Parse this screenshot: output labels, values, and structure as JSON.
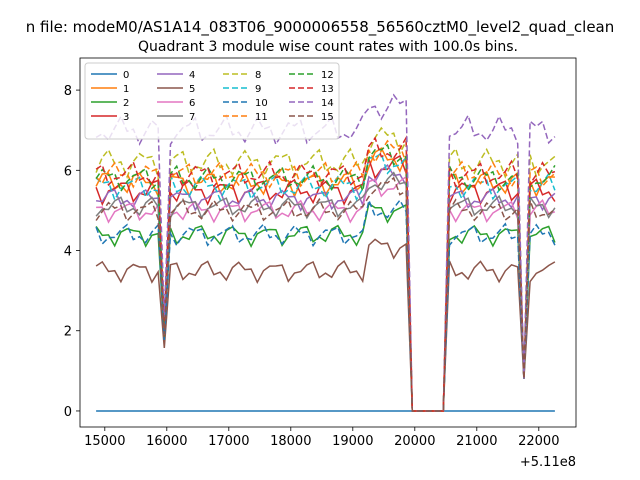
{
  "chart_data": {
    "type": "line",
    "suptitle": "n file: modeM0/AS1A14_083T06_9000006558_56560cztM0_level2_quad_clean",
    "title": "Quadrant 3 module wise count rates with 100.0s bins.",
    "xlabel": "",
    "ylabel": "",
    "x_offset_label": "+5.11e8",
    "xlim": [
      14600,
      22600
    ],
    "ylim": [
      -0.4,
      8.8
    ],
    "x_ticks": [
      15000,
      16000,
      17000,
      18000,
      19000,
      20000,
      21000,
      22000
    ],
    "x_tick_labels": [
      "15000",
      "16000",
      "17000",
      "18000",
      "19000",
      "20000",
      "21000",
      "22000"
    ],
    "y_ticks": [
      0,
      2,
      4,
      6,
      8
    ],
    "y_tick_labels": [
      "0",
      "2",
      "4",
      "6",
      "8"
    ],
    "grid": false,
    "legend_position": "top-left",
    "legend_columns": 4,
    "segments": [
      {
        "start": 14860,
        "end": 19860,
        "step": 100
      },
      {
        "start": 20560,
        "end": 21660,
        "step": 100
      },
      {
        "start": 21760,
        "end": 22260,
        "step": 100
      }
    ],
    "gap_x": [
      19960,
      20060,
      20160,
      20260,
      20360,
      20460
    ],
    "dip_points": [
      {
        "x": 15960,
        "f": 0.22
      },
      {
        "x": 21760,
        "f": 0.0
      }
    ],
    "series": [
      {
        "name": "0",
        "color": "#1f77b4",
        "dash": "solid",
        "base": 0.0,
        "amp": 0.0
      },
      {
        "name": "1",
        "color": "#ff7f0e",
        "dash": "solid",
        "base": 5.7,
        "amp": 0.35
      },
      {
        "name": "2",
        "color": "#2ca02c",
        "dash": "solid",
        "base": 4.4,
        "amp": 0.3
      },
      {
        "name": "3",
        "color": "#d62728",
        "dash": "solid",
        "base": 5.5,
        "amp": 0.35
      },
      {
        "name": "4",
        "color": "#9467bd",
        "dash": "solid",
        "base": 5.3,
        "amp": 0.3
      },
      {
        "name": "5",
        "color": "#8c564b",
        "dash": "solid",
        "base": 3.5,
        "amp": 0.3
      },
      {
        "name": "6",
        "color": "#e377c2",
        "dash": "solid",
        "base": 5.0,
        "amp": 0.3
      },
      {
        "name": "7",
        "color": "#7f7f7f",
        "dash": "solid",
        "base": 5.1,
        "amp": 0.3
      },
      {
        "name": "8",
        "color": "#bcbd22",
        "dash": "dashed",
        "base": 6.2,
        "amp": 0.4
      },
      {
        "name": "9",
        "color": "#17becf",
        "dash": "dashed",
        "base": 5.6,
        "amp": 0.35
      },
      {
        "name": "10",
        "color": "#1f77b4",
        "dash": "dashed",
        "base": 4.4,
        "amp": 0.3
      },
      {
        "name": "11",
        "color": "#ff7f0e",
        "dash": "dashed",
        "base": 5.9,
        "amp": 0.35
      },
      {
        "name": "12",
        "color": "#2ca02c",
        "dash": "dashed",
        "base": 5.8,
        "amp": 0.35
      },
      {
        "name": "13",
        "color": "#d62728",
        "dash": "dashed",
        "base": 5.9,
        "amp": 0.35
      },
      {
        "name": "14",
        "color": "#9467bd",
        "dash": "dashed",
        "base": 7.0,
        "amp": 0.4
      },
      {
        "name": "15",
        "color": "#8c564b",
        "dash": "dashed",
        "base": 5.0,
        "amp": 0.3
      }
    ]
  }
}
